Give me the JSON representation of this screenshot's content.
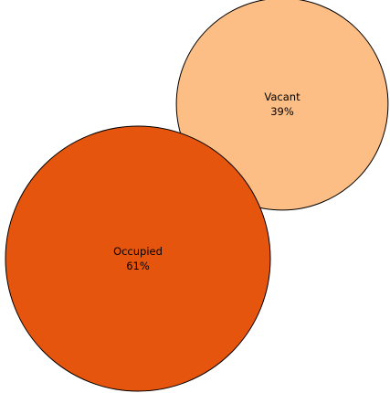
{
  "chart_data": {
    "type": "bubble",
    "title": "",
    "items": [
      {
        "label": "Vacant",
        "value_label": "39%",
        "value": 39,
        "color": "#fdbe85"
      },
      {
        "label": "Occupied",
        "value_label": "61%",
        "value": 61,
        "color": "#e6550d"
      }
    ]
  }
}
